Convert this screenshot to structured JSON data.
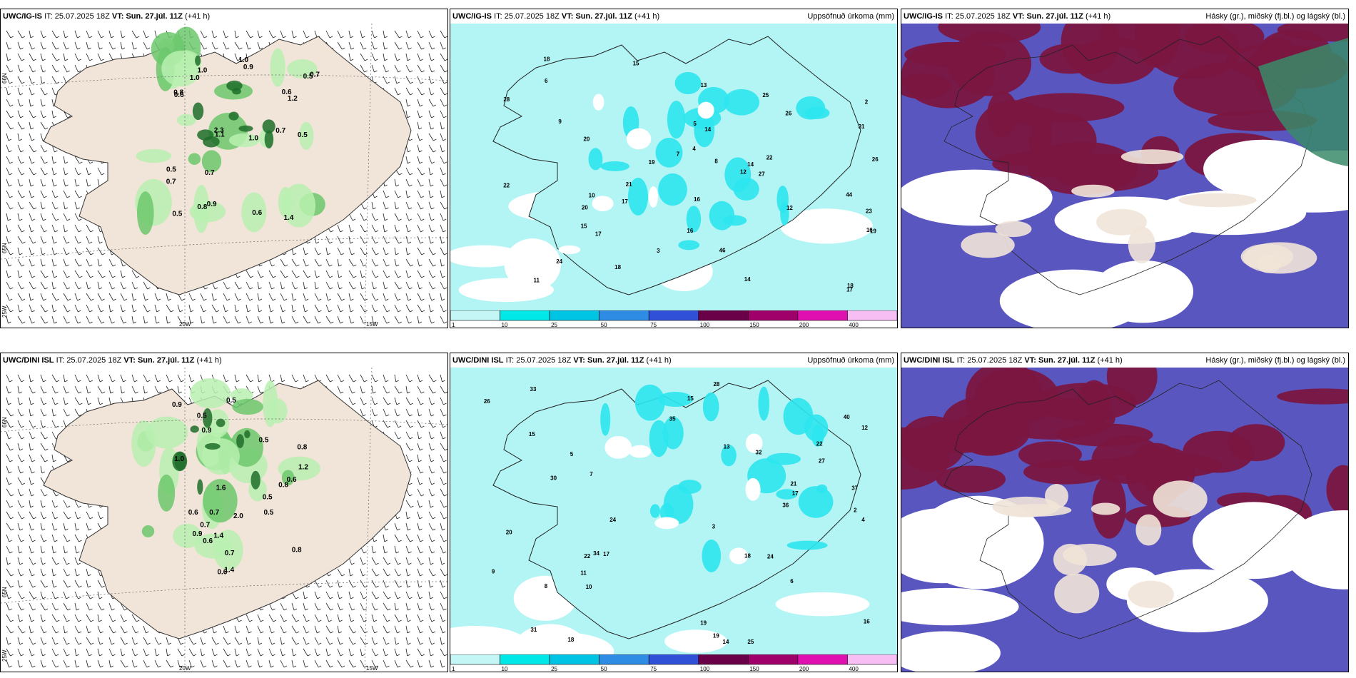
{
  "panels": [
    {
      "model": "UWC/IG-IS",
      "it_label": "IT:",
      "it": "25.07.2025 18Z",
      "vt_label": "VT:",
      "vt": "Sun. 27.júl. 11Z",
      "lead": "(+41 h)",
      "right": "",
      "lat_labels": [
        "66N",
        "65N",
        "25W"
      ],
      "lon_labels": [
        "20W",
        "15W"
      ],
      "values": [
        "1.0",
        "0.5",
        "1.1",
        "1.4",
        "0.7",
        "0.6",
        "1.0",
        "0.8",
        "0.7",
        "0.5",
        "0.6",
        "1.0",
        "0.8",
        "0.7",
        "0.9",
        "0.9",
        "0.5",
        "1.2",
        "1.0",
        "0.6",
        "0.5",
        "2.3",
        "0.7"
      ]
    },
    {
      "model": "UWC/IG-IS",
      "it_label": "IT:",
      "it": "25.07.2025 18Z",
      "vt_label": "VT:",
      "vt": "Sun. 27.júl. 11Z",
      "lead": "(+41 h)",
      "right": "Uppsöfnuð úrkoma (mm)",
      "values": [
        "14",
        "9",
        "19",
        "16",
        "15",
        "18",
        "17",
        "23",
        "16",
        "20",
        "14",
        "13",
        "12",
        "27",
        "17",
        "18",
        "15",
        "20",
        "26",
        "22",
        "46",
        "44",
        "28",
        "25",
        "31",
        "22",
        "17",
        "24",
        "21",
        "14",
        "26",
        "18",
        "19",
        "12",
        "16",
        "7",
        "5",
        "8",
        "3",
        "2",
        "4",
        "6",
        "10",
        "11"
      ]
    },
    {
      "model": "UWC/IG-IS",
      "it_label": "IT:",
      "it": "25.07.2025 18Z",
      "vt_label": "VT:",
      "vt": "Sun. 27.júl. 11Z",
      "lead": "(+41 h)",
      "right": "Hásky (gr.), miðský (fj.bl.) og lágský (bl.)"
    },
    {
      "model": "UWC/DINI ISL",
      "it_label": "IT:",
      "it": "25.07.2025 18Z",
      "vt_label": "VT:",
      "vt": "Sun. 27.júl. 11Z",
      "lead": "(+41 h)",
      "right": "",
      "lat_labels": [
        "66N",
        "65N",
        "25W"
      ],
      "lon_labels": [
        "20W",
        "15W"
      ],
      "values": [
        "0.7",
        "0.5",
        "0.6",
        "1.6",
        "2.0",
        "0.8",
        "0.6",
        "1.4",
        "0.5",
        "0.7",
        "0.9",
        "0.8",
        "0.9",
        "1.4",
        "0.6",
        "0.5",
        "0.7",
        "1.2",
        "0.5",
        "1.0",
        "0.6",
        "0.8",
        "0.9",
        "0.5"
      ]
    },
    {
      "model": "UWC/DINI ISL",
      "it_label": "IT:",
      "it": "25.07.2025 18Z",
      "vt_label": "VT:",
      "vt": "Sun. 27.júl. 11Z",
      "lead": "(+41 h)",
      "right": "Uppsöfnuð úrkoma (mm)",
      "values": [
        "17",
        "19",
        "22",
        "15",
        "18",
        "25",
        "26",
        "20",
        "27",
        "21",
        "33",
        "31",
        "36",
        "30",
        "22",
        "34",
        "19",
        "24",
        "32",
        "28",
        "40",
        "17",
        "14",
        "37",
        "35",
        "12",
        "24",
        "15",
        "16",
        "13",
        "6",
        "4",
        "2",
        "3",
        "7",
        "9",
        "10",
        "11",
        "5",
        "8",
        "18"
      ]
    },
    {
      "model": "UWC/DINI ISL",
      "it_label": "IT:",
      "it": "25.07.2025 18Z",
      "vt_label": "VT:",
      "vt": "Sun. 27.júl. 11Z",
      "lead": "(+41 h)",
      "right": "Hásky (gr.), miðský (fj.bl.) og lágský (bl.)"
    }
  ],
  "legend": {
    "ticks": [
      "1",
      "10",
      "25",
      "50",
      "75",
      "100",
      "150",
      "200",
      "400"
    ],
    "colors": [
      "#c4f6f6",
      "#00e8e8",
      "#00c4e4",
      "#2f8ce4",
      "#3050d8",
      "#6a0048",
      "#a0006a",
      "#e010b0",
      "#f6bef2"
    ]
  },
  "colors": {
    "land": "#f1e4d8",
    "sea_precip": "#b3f5f5",
    "sea": "#ffffff",
    "green_light": "#b8f0b0",
    "green_mid": "#6cc86c",
    "green_dark": "#1e6e2a",
    "cloud_high": "#7a1640",
    "cloud_mid": "#5a56c0",
    "cloud_low": "#2e8cff"
  }
}
